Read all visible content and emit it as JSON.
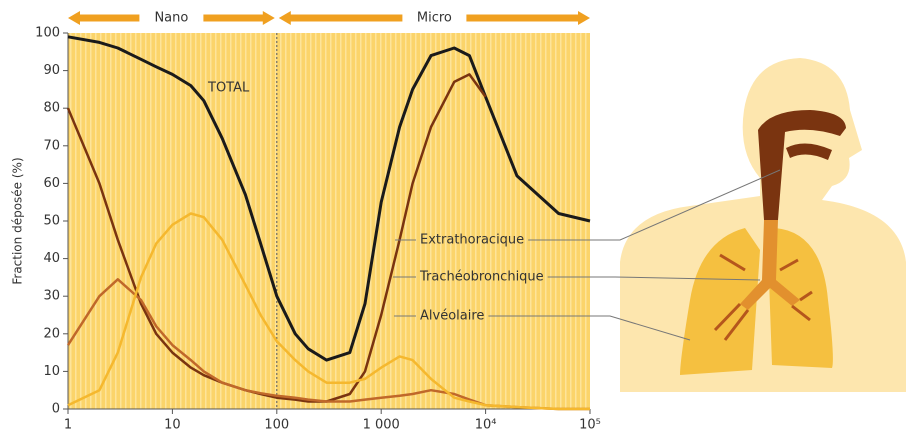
{
  "chart_data": {
    "type": "line",
    "y_label": "Fraction déposée (%)",
    "xscale": "log",
    "xlim": [
      1,
      100000
    ],
    "ylim": [
      0,
      100
    ],
    "xticks": [
      1,
      10,
      100,
      {
        "value": 1000,
        "label": "1 000"
      },
      {
        "value": 10000,
        "label": "10⁴"
      },
      {
        "value": 100000,
        "label": "10⁵"
      }
    ],
    "yticks": [
      0,
      10,
      20,
      30,
      40,
      50,
      60,
      70,
      80,
      90,
      100
    ],
    "divider": 100,
    "regions": [
      "Nano",
      "Micro"
    ],
    "x": [
      1,
      2,
      3,
      5,
      7,
      10,
      15,
      20,
      30,
      50,
      70,
      100,
      150,
      200,
      300,
      500,
      700,
      1000,
      1500,
      2000,
      3000,
      5000,
      7000,
      10000,
      20000,
      50000,
      100000
    ],
    "series": [
      {
        "name": "TOTAL",
        "color": "#1a1a1a",
        "values": [
          99,
          97.5,
          96,
          93,
          91,
          89,
          86,
          82,
          72,
          57,
          44,
          30,
          20,
          16,
          13,
          15,
          28,
          55,
          75,
          85,
          94,
          96,
          94,
          83,
          62,
          52,
          50
        ]
      },
      {
        "name": "Extrathoracique",
        "color": "#7a3410",
        "values": [
          80,
          60,
          45,
          28,
          20,
          15,
          11,
          9,
          7,
          5,
          4,
          3,
          2.5,
          2,
          2,
          4,
          10,
          25,
          45,
          60,
          75,
          87,
          89,
          83,
          null,
          null,
          null
        ]
      },
      {
        "name": "Trachéobronchique",
        "color": "#c0682a",
        "values": [
          17,
          30,
          34.5,
          29,
          22,
          17,
          13,
          10,
          7,
          5,
          4.2,
          3.5,
          3,
          2.5,
          2,
          2,
          2.5,
          3,
          3.5,
          4,
          5,
          4,
          2.5,
          1,
          0.5,
          0,
          0
        ]
      },
      {
        "name": "Alvéolaire",
        "color": "#f5b82e",
        "values": [
          1,
          5,
          15,
          35,
          44,
          49,
          52,
          51,
          45,
          33,
          25,
          18,
          13,
          10,
          7,
          7,
          8,
          11,
          14,
          13,
          8,
          3,
          2,
          1,
          0.5,
          0,
          0
        ]
      }
    ]
  }
}
